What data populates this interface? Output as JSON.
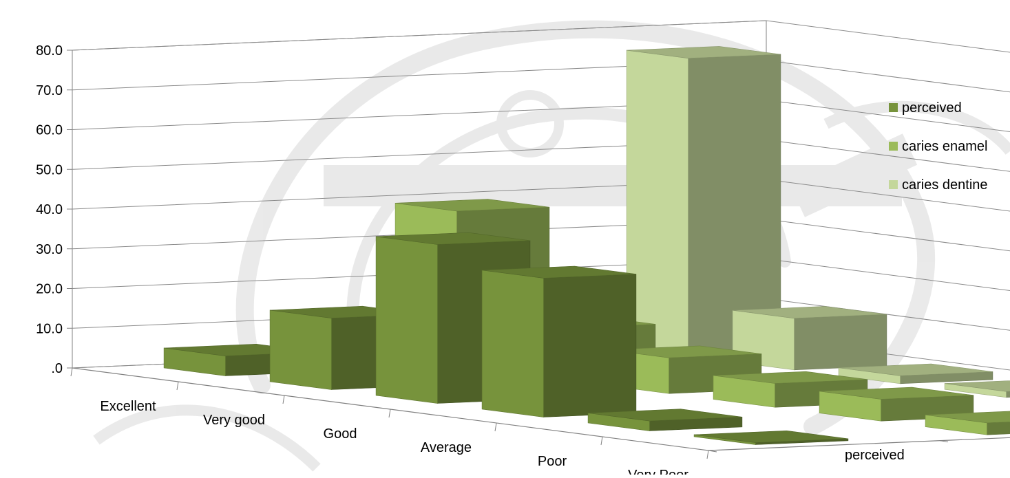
{
  "chart_data": {
    "type": "bar",
    "subtype": "3d-column",
    "categories": [
      "Excellent",
      "Very good",
      "Good",
      "Average",
      "Poor",
      "Very Poor"
    ],
    "series": [
      {
        "name": "perceived",
        "values": [
          5.0,
          18.0,
          40.0,
          35.0,
          2.5,
          0.5
        ],
        "color": "#77933C"
      },
      {
        "name": "caries enamel",
        "values": [
          39.0,
          13.0,
          9.0,
          6.0,
          5.5,
          3.0
        ],
        "color": "#9BBB59"
      },
      {
        "name": "caries dentine",
        "values": [
          75.0,
          13.0,
          2.0,
          1.5,
          1.5,
          1.0
        ],
        "color": "#C4D79B"
      }
    ],
    "y_ticks": [
      ".0",
      "10.0",
      "20.0",
      "30.0",
      "40.0",
      "50.0",
      "60.0",
      "70.0",
      "80.0"
    ],
    "ylim": [
      0,
      80
    ],
    "depth_labels": [
      "perceived",
      "caries enamel",
      "caries dentine"
    ],
    "legend": {
      "position": "right",
      "items": [
        "perceived",
        "caries enamel",
        "caries dentine"
      ]
    },
    "grid": true,
    "background_watermark": true
  }
}
